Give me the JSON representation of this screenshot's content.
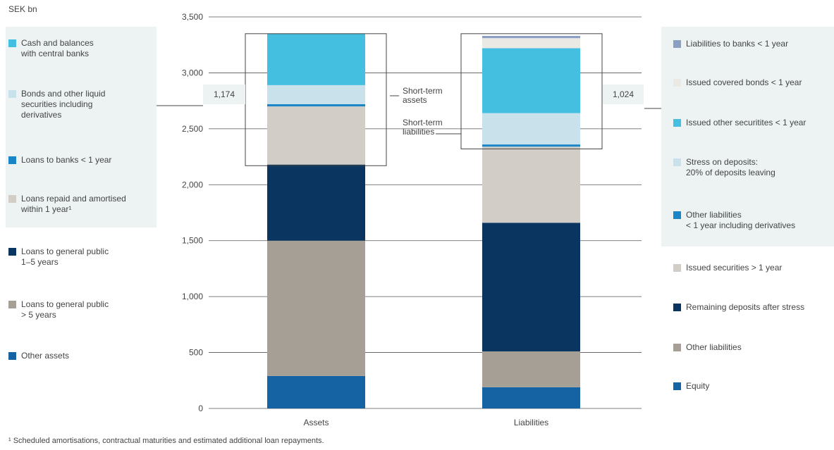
{
  "unit_label": "SEK bn",
  "footnote": "¹ Scheduled amortisations, contractual maturities and estimated additional loan repayments.",
  "left_legend": [
    {
      "label": "Cash and balances\nwith central banks",
      "color": "#45bfe0"
    },
    {
      "label": "Bonds and other liquid\nsecurities including\nderivatives",
      "color": "#c8e1ea"
    },
    {
      "label": "Loans to banks < 1 year",
      "color": "#1a86c8"
    },
    {
      "label": "Loans repaid and amortised\nwithin 1 year¹",
      "color": "#d3cdc7"
    },
    {
      "label": "Loans to general public\n1–5 years",
      "color": "#0a3560"
    },
    {
      "label": "Loans to general public\n> 5 years",
      "color": "#a69f96"
    },
    {
      "label": "Other assets",
      "color": "#1663a4"
    }
  ],
  "right_legend": [
    {
      "label": "Liabilities to banks < 1 year",
      "color": "#8b9fc2"
    },
    {
      "label": "Issued covered bonds < 1 year",
      "color": "#ebe9e4"
    },
    {
      "label": "Issued other securitites < 1 year",
      "color": "#45bfe0"
    },
    {
      "label": "Stress on deposits:\n20% of deposits leaving",
      "color": "#c8e1ea"
    },
    {
      "label": "Other liabilities\n< 1 year including derivatives",
      "color": "#1a86c8"
    },
    {
      "label": "Issued securities > 1 year",
      "color": "#d3cdc7"
    },
    {
      "label": "Remaining deposits after stress",
      "color": "#0a3560"
    },
    {
      "label": "Other liabilities",
      "color": "#a69f96"
    },
    {
      "label": "Equity",
      "color": "#1663a4"
    }
  ],
  "annotations": {
    "assets_total": "1,174",
    "liabilities_total": "1,024",
    "short_term_assets": "Short-term\nassets",
    "short_term_liabilities": "Short-term\nliabilities"
  },
  "chart_data": {
    "type": "bar",
    "stacked": true,
    "categories": [
      "Assets",
      "Liabilities"
    ],
    "ylim": [
      0,
      3500
    ],
    "yticks": [
      0,
      500,
      1000,
      1500,
      2000,
      2500,
      3000,
      3500
    ],
    "ytick_labels": [
      "0",
      "500",
      "1,000",
      "1,500",
      "2,000",
      "2,500",
      "3,000",
      "3,500"
    ],
    "xlabel": "",
    "ylabel": "SEK bn",
    "grid": true,
    "short_term_boxes": [
      {
        "category": "Assets",
        "value": 1174,
        "ymin": 2170,
        "ymax": 3350
      },
      {
        "category": "Liabilities",
        "value": 1024,
        "ymin": 2320,
        "ymax": 3350
      }
    ],
    "stacks": [
      {
        "category": "Assets",
        "segments": [
          {
            "name": "Other assets",
            "value": 290,
            "color": "#1663a4"
          },
          {
            "name": "Loans to general public > 5 years",
            "value": 1210,
            "color": "#a69f96"
          },
          {
            "name": "Loans to general public 1–5 years",
            "value": 680,
            "color": "#0a3560"
          },
          {
            "name": "Loans repaid and amortised within 1 year¹",
            "value": 520,
            "color": "#d3cdc7"
          },
          {
            "name": "Loans to banks < 1 year",
            "value": 20,
            "color": "#1a86c8"
          },
          {
            "name": "Bonds and other liquid securities including derivatives",
            "value": 170,
            "color": "#c8e1ea"
          },
          {
            "name": "Cash and balances with central banks",
            "value": 460,
            "color": "#45bfe0"
          }
        ]
      },
      {
        "category": "Liabilities",
        "segments": [
          {
            "name": "Equity",
            "value": 190,
            "color": "#1663a4"
          },
          {
            "name": "Other liabilities",
            "value": 320,
            "color": "#a69f96"
          },
          {
            "name": "Remaining deposits after stress",
            "value": 1150,
            "color": "#0a3560"
          },
          {
            "name": "Issued securities > 1 year",
            "value": 680,
            "color": "#d3cdc7"
          },
          {
            "name": "Other liabilities < 1 year including derivatives",
            "value": 20,
            "color": "#1a86c8"
          },
          {
            "name": "Stress on deposits: 20% of deposits leaving",
            "value": 280,
            "color": "#c8e1ea"
          },
          {
            "name": "Issued other securitites < 1 year",
            "value": 580,
            "color": "#45bfe0"
          },
          {
            "name": "Issued covered bonds < 1 year",
            "value": 90,
            "color": "#ebe9e4"
          },
          {
            "name": "Liabilities to banks < 1 year",
            "value": 20,
            "color": "#8b9fc2"
          }
        ]
      }
    ]
  }
}
